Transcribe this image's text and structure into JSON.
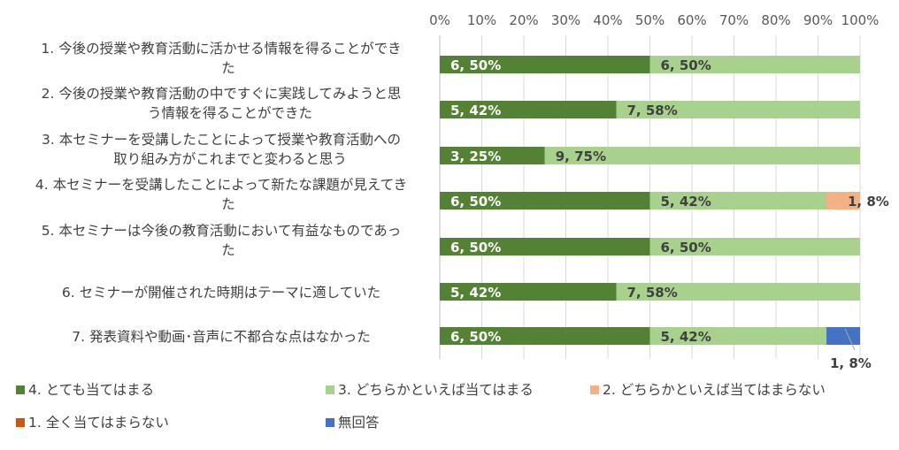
{
  "chart_data": {
    "type": "bar",
    "orientation": "horizontal",
    "stacked": true,
    "percent_stacked": true,
    "xlim": [
      0,
      100
    ],
    "ticks": [
      "0%",
      "10%",
      "20%",
      "30%",
      "40%",
      "50%",
      "60%",
      "70%",
      "80%",
      "90%",
      "100%"
    ],
    "grid": true,
    "legend_position": "bottom",
    "categories": [
      [
        "1. 今後の授業や教育活動に活かせる情報を得ることができ",
        "た"
      ],
      [
        "2. 今後の授業や教育活動の中ですぐに実践してみようと思",
        "う情報を得ることができた"
      ],
      [
        "3. 本セミナーを受講したことによって授業や教育活動への",
        "取り組み方がこれまでと変わると思う"
      ],
      [
        "4. 本セミナーを受講したことによって新たな課題が見えてき",
        "た"
      ],
      [
        "5. 本セミナーは今後の教育活動において有益なものであっ",
        "た"
      ],
      [
        "6. セミナーが開催された時期はテーマに適していた"
      ],
      [
        "7. 発表資料や動画･音声に不都合な点はなかった"
      ]
    ],
    "series": [
      {
        "name": "4. とても当てはまる",
        "color": "#548235",
        "values": [
          50,
          42,
          25,
          50,
          50,
          42,
          50
        ],
        "labels": [
          "6, 50%",
          "5, 42%",
          "3, 25%",
          "6, 50%",
          "6, 50%",
          "5, 42%",
          "6, 50%"
        ]
      },
      {
        "name": "3. どちらかといえば当てはまる",
        "color": "#a9d18e",
        "values": [
          50,
          58,
          75,
          42,
          50,
          58,
          42
        ],
        "labels": [
          "6, 50%",
          "7, 58%",
          "9, 75%",
          "5, 42%",
          "6, 50%",
          "7, 58%",
          "5, 42%"
        ]
      },
      {
        "name": "2. どちらかといえば当てはまらない",
        "color": "#f4b183",
        "values": [
          0,
          0,
          0,
          8,
          0,
          0,
          0
        ],
        "labels": [
          "",
          "",
          "",
          "1, 8%",
          "",
          "",
          ""
        ]
      },
      {
        "name": "1. 全く当てはまらない",
        "color": "#c55a11",
        "values": [
          0,
          0,
          0,
          0,
          0,
          0,
          0
        ],
        "labels": [
          "",
          "",
          "",
          "",
          "",
          "",
          ""
        ]
      },
      {
        "name": "無回答",
        "color": "#4472c4",
        "values": [
          0,
          0,
          0,
          0,
          0,
          0,
          8
        ],
        "labels": [
          "",
          "",
          "",
          "",
          "",
          "",
          "1, 8%"
        ]
      }
    ]
  }
}
